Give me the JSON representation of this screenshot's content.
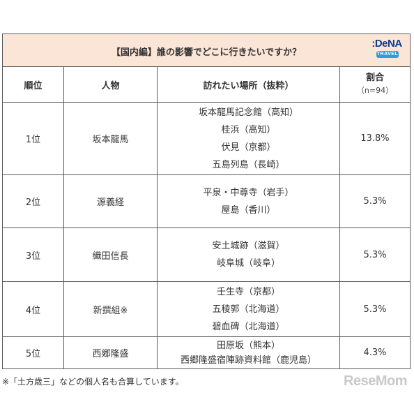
{
  "table": {
    "title": "【国内編】誰の影響でどこに行きたいですか？",
    "logo": {
      "main": ":DeNA",
      "sub": "TRAVEL"
    },
    "headers": {
      "rank": "順位",
      "person": "人物",
      "places": "訪れたい場所（抜粋）",
      "rate": "割合",
      "rate_n": "（n=94）"
    },
    "rows": [
      {
        "rank": "1位",
        "person": "坂本龍馬",
        "places": [
          "坂本龍馬記念館（高知）",
          "桂浜（高知）",
          "伏見（京都）",
          "五島列島（長崎）"
        ],
        "rate": "13.8%"
      },
      {
        "rank": "2位",
        "person": "源義経",
        "places": [
          "平泉・中尊寺（岩手）",
          "屋島（香川）"
        ],
        "rate": "5.3%"
      },
      {
        "rank": "3位",
        "person": "織田信長",
        "places": [
          "安土城跡（滋賀）",
          "岐阜城（岐阜）"
        ],
        "rate": "5.3%"
      },
      {
        "rank": "4位",
        "person": "新撰組※",
        "places": [
          "壬生寺（京都）",
          "五稜郭（北海道）",
          "碧血碑（北海道）"
        ],
        "rate": "5.3%"
      },
      {
        "rank": "5位",
        "person": "西郷隆盛",
        "places": [
          "田原坂（熊本）",
          "西郷隆盛宿陣跡資料館（鹿児島）"
        ],
        "rate": "4.3%"
      }
    ]
  },
  "footnote": "※「土方歳三」などの個人名も合算しています。",
  "watermark": "ReseMom",
  "colors": {
    "title_bg": "#fbe5d6",
    "border": "#595959",
    "logo_blue": "#0f3d91",
    "logo_badge": "#2f9bd8"
  }
}
